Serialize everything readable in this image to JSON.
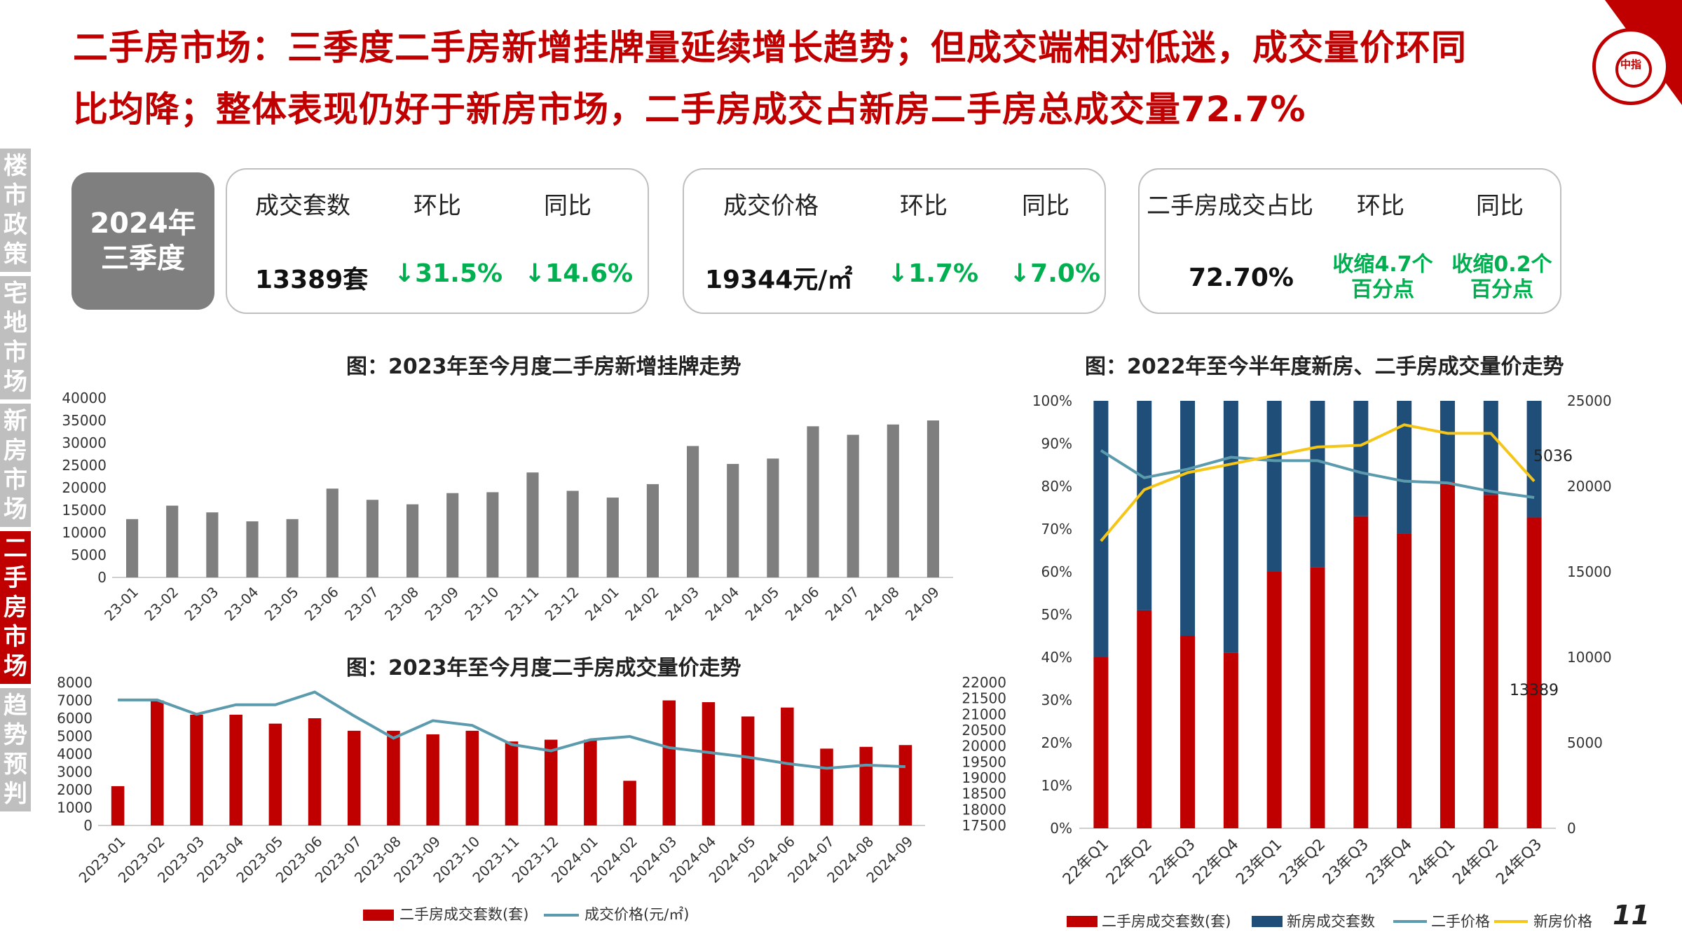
{
  "header": {
    "title_line1": "二手房市场：三季度二手房新增挂牌量延续增长趋势；但成交端相对低迷，成交量价环同",
    "title_line2": "比均降；整体表现仍好于新房市场，二手房成交占新房二手房总成交量72.7%"
  },
  "sidebar": {
    "items": [
      {
        "label": "楼市政策"
      },
      {
        "label": "宅地市场"
      },
      {
        "label": "新房市场"
      },
      {
        "label": "二手房市场"
      },
      {
        "label": "趋势预判"
      }
    ],
    "active_index": 3,
    "active_color": "#c00000",
    "inactive_color": "#bfbfbf"
  },
  "quarter_box": {
    "line1": "2024年",
    "line2": "三季度"
  },
  "cards": {
    "volume": {
      "label": "成交套数",
      "value": "13389套",
      "mom_label": "环比",
      "mom": "↓31.5%",
      "yoy_label": "同比",
      "yoy": "↓14.6%"
    },
    "price": {
      "label": "成交价格",
      "value": "19344元/㎡",
      "mom_label": "环比",
      "mom": "↓1.7%",
      "yoy_label": "同比",
      "yoy": "↓7.0%"
    },
    "share": {
      "label": "二手房成交占比",
      "value": "72.70%",
      "mom_label": "环比",
      "mom": "收缩4.7个百分点",
      "yoy_label": "同比",
      "yoy": "收缩0.2个百分点"
    }
  },
  "page_number": "11",
  "colors": {
    "accent": "#c00000",
    "gray_bar": "#7f7f7f",
    "navy": "#1f4e79",
    "teal_line": "#5b9bad",
    "gold_line": "#f5c518",
    "green": "#00b050"
  },
  "chart_data": [
    {
      "id": "listings",
      "type": "bar",
      "title": "图：2023年至今月度二手房新增挂牌走势",
      "categories": [
        "23-01",
        "23-02",
        "23-03",
        "23-04",
        "23-05",
        "23-06",
        "23-07",
        "23-08",
        "23-09",
        "23-10",
        "23-11",
        "23-12",
        "24-01",
        "24-02",
        "24-03",
        "24-04",
        "24-05",
        "24-06",
        "24-07",
        "24-08",
        "24-09"
      ],
      "values": [
        13000,
        16000,
        14500,
        12500,
        13000,
        19800,
        17300,
        16300,
        18800,
        19000,
        23400,
        19300,
        17800,
        20800,
        29300,
        25300,
        26500,
        33700,
        31800,
        34100,
        35000
      ],
      "ylim": [
        0,
        40000
      ],
      "yticks": [
        "40000",
        "35000",
        "30000",
        "25000",
        "20000",
        "15000",
        "10000",
        "5000",
        "0"
      ],
      "color": "#7f7f7f"
    },
    {
      "id": "monthly_volume_price",
      "type": "bar",
      "title": "图：2023年至今月度二手房成交量价走势",
      "categories": [
        "2023-01",
        "2023-02",
        "2023-03",
        "2023-04",
        "2023-05",
        "2023-06",
        "2023-07",
        "2023-08",
        "2023-09",
        "2023-10",
        "2023-11",
        "2023-12",
        "2024-01",
        "2024-02",
        "2024-03",
        "2024-04",
        "2024-05",
        "2024-06",
        "2024-07",
        "2024-08",
        "2024-09"
      ],
      "series": [
        {
          "name": "二手房成交套数(套)",
          "type": "bar",
          "axis": "left",
          "color": "#c00000",
          "values": [
            2200,
            7000,
            6200,
            6200,
            5700,
            6000,
            5300,
            5300,
            5100,
            5300,
            4700,
            4800,
            4800,
            2500,
            7000,
            6900,
            6100,
            6600,
            4300,
            4400,
            4500
          ]
        },
        {
          "name": "成交价格(元/㎡)",
          "type": "line",
          "axis": "right",
          "color": "#5b9bad",
          "values": [
            21450,
            21450,
            21000,
            21300,
            21300,
            21700,
            20950,
            20250,
            20800,
            20650,
            20050,
            19850,
            20200,
            20300,
            19950,
            19800,
            19650,
            19450,
            19300,
            19400,
            19350
          ]
        }
      ],
      "ylim_left": [
        0,
        8000
      ],
      "ylim_right": [
        17500,
        22000
      ],
      "yticks_left": [
        "8000",
        "7000",
        "6000",
        "5000",
        "4000",
        "3000",
        "2000",
        "1000",
        "0"
      ],
      "yticks_right": [
        "22000",
        "21500",
        "21000",
        "20500",
        "20000",
        "19500",
        "19000",
        "18500",
        "18000",
        "17500"
      ],
      "legend": "bottom"
    },
    {
      "id": "half_year_share",
      "type": "bar",
      "title": "图：2022年至今半年度新房、二手房成交量价走势",
      "categories": [
        "22年Q1",
        "22年Q2",
        "22年Q3",
        "22年Q4",
        "23年Q1",
        "23年Q2",
        "23年Q3",
        "23年Q4",
        "24年Q1",
        "24年Q2",
        "24年Q3"
      ],
      "series": [
        {
          "name": "二手房成交套数(套)",
          "type": "stacked-bar-percent",
          "axis": "left",
          "color": "#c00000",
          "values": [
            0.4,
            0.51,
            0.45,
            0.41,
            0.6,
            0.61,
            0.73,
            0.69,
            0.81,
            0.78,
            0.727
          ]
        },
        {
          "name": "新房成交套数",
          "type": "stacked-bar-percent",
          "axis": "left",
          "color": "#1f4e79",
          "values": [
            0.6,
            0.49,
            0.55,
            0.59,
            0.4,
            0.39,
            0.27,
            0.31,
            0.19,
            0.22,
            0.273
          ]
        },
        {
          "name": "二手价格",
          "type": "line",
          "axis": "right",
          "color": "#5b9bad",
          "values": [
            22100,
            20500,
            21000,
            21700,
            21500,
            21500,
            20800,
            20300,
            20200,
            19700,
            19344
          ]
        },
        {
          "name": "新房价格",
          "type": "line",
          "axis": "right",
          "color": "#f5c518",
          "values": [
            16800,
            19800,
            20800,
            21300,
            21800,
            22300,
            22400,
            23600,
            23100,
            23100,
            20300
          ]
        }
      ],
      "ylim_left": [
        0,
        1
      ],
      "ylim_right": [
        0,
        25000
      ],
      "yticks_left": [
        "100%",
        "90%",
        "80%",
        "70%",
        "60%",
        "50%",
        "40%",
        "30%",
        "20%",
        "10%",
        "0%"
      ],
      "yticks_right": [
        "25000",
        "20000",
        "15000",
        "10000",
        "5000",
        "0"
      ],
      "annotations": [
        "5036",
        "13389"
      ],
      "legend": "bottom"
    }
  ]
}
